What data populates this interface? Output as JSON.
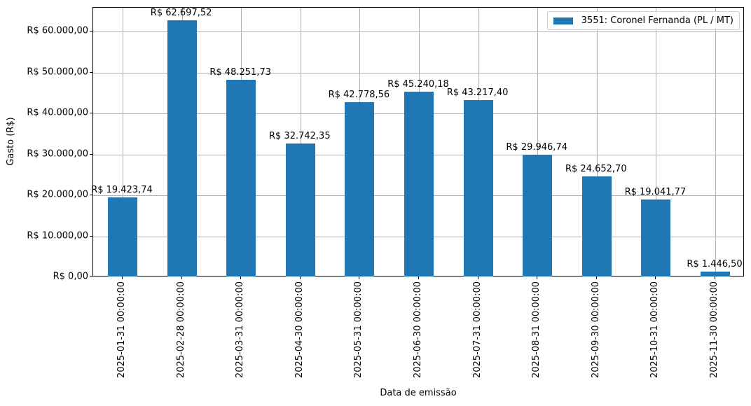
{
  "chart_data": {
    "type": "bar",
    "title": "",
    "xlabel": "Data de emissão",
    "ylabel": "Gasto (R$)",
    "ylim": [
      0,
      65830
    ],
    "grid": true,
    "legend_position": "upper right",
    "categories": [
      "2025-01-31 00:00:00",
      "2025-02-28 00:00:00",
      "2025-03-31 00:00:00",
      "2025-04-30 00:00:00",
      "2025-05-31 00:00:00",
      "2025-06-30 00:00:00",
      "2025-07-31 00:00:00",
      "2025-08-31 00:00:00",
      "2025-09-30 00:00:00",
      "2025-10-31 00:00:00",
      "2025-11-30 00:00:00"
    ],
    "series": [
      {
        "name": "3551: Coronel Fernanda (PL / MT)",
        "color": "#1f77b4",
        "values": [
          19423.74,
          62697.52,
          48251.73,
          32742.35,
          42778.56,
          45240.18,
          43217.4,
          29946.74,
          24652.7,
          19041.77,
          1446.5
        ],
        "labels": [
          "R$ 19.423,74",
          "R$ 62.697,52",
          "R$ 48.251,73",
          "R$ 32.742,35",
          "R$ 42.778,56",
          "R$ 45.240,18",
          "R$ 43.217,40",
          "R$ 29.946,74",
          "R$ 24.652,70",
          "R$ 19.041,77",
          "R$ 1.446,50"
        ]
      }
    ],
    "yticks": [
      {
        "value": 0,
        "label": "R$ 0,00"
      },
      {
        "value": 10000,
        "label": "R$ 10.000,00"
      },
      {
        "value": 20000,
        "label": "R$ 20.000,00"
      },
      {
        "value": 30000,
        "label": "R$ 30.000,00"
      },
      {
        "value": 40000,
        "label": "R$ 40.000,00"
      },
      {
        "value": 50000,
        "label": "R$ 50.000,00"
      },
      {
        "value": 60000,
        "label": "R$ 60.000,00"
      }
    ]
  }
}
